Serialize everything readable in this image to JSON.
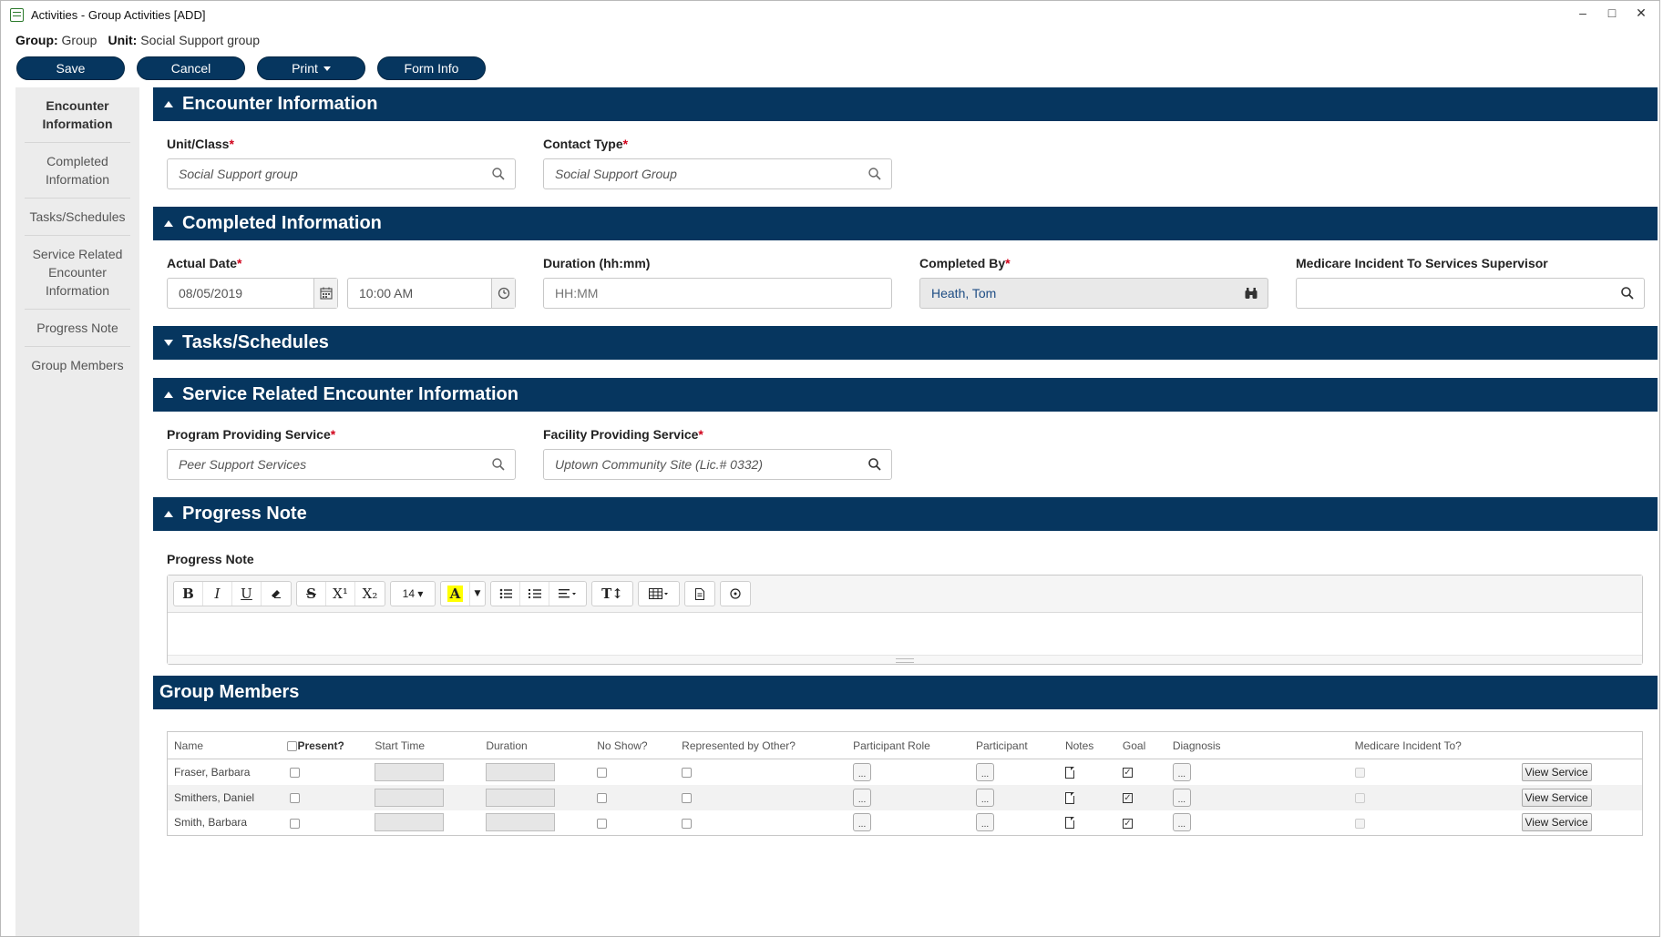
{
  "window": {
    "title": "Activities - Group Activities [ADD]",
    "minimize": "–",
    "maximize": "□",
    "close": "✕"
  },
  "context": {
    "group_label": "Group:",
    "group_value": "Group",
    "unit_label": "Unit:",
    "unit_value": "Social Support group"
  },
  "toolbar": {
    "save": "Save",
    "cancel": "Cancel",
    "print": "Print",
    "form_info": "Form Info"
  },
  "sidebar": {
    "items": [
      {
        "label": "Encounter Information"
      },
      {
        "label": "Completed Information"
      },
      {
        "label": "Tasks/Schedules"
      },
      {
        "label": "Service Related Encounter Information"
      },
      {
        "label": "Progress Note"
      },
      {
        "label": "Group Members"
      }
    ]
  },
  "encounter": {
    "title": "Encounter Information",
    "unit_label": "Unit/Class",
    "unit_value": "Social Support group",
    "contact_label": "Contact Type",
    "contact_value": "Social Support Group",
    "required_mark": "*"
  },
  "completed": {
    "title": "Completed Information",
    "date_label": "Actual Date",
    "date_value": "08/05/2019",
    "time_value": "10:00 AM",
    "duration_label": "Duration (hh:mm)",
    "duration_placeholder": "HH:MM",
    "by_label": "Completed By",
    "by_value": "Heath, Tom",
    "supervisor_label": "Medicare Incident To Services Supervisor",
    "supervisor_value": ""
  },
  "tasks": {
    "title": "Tasks/Schedules"
  },
  "service": {
    "title": "Service Related Encounter Information",
    "program_label": "Program Providing Service",
    "program_value": "Peer Support Services",
    "facility_label": "Facility Providing Service",
    "facility_value": "Uptown Community Site (Lic.# 0332)"
  },
  "progress": {
    "title": "Progress Note",
    "label": "Progress Note",
    "font_size": "14",
    "toolbar": {
      "bold": "B",
      "italic": "I",
      "underline": "U",
      "strike": "S",
      "superscript": "X¹",
      "subscript": "X₂",
      "highlight": "A",
      "style": "T↕"
    }
  },
  "group_members": {
    "title": "Group Members",
    "columns": [
      "Name",
      "Present?",
      "Start Time",
      "Duration",
      "No Show?",
      "Represented by Other?",
      "Participant Role",
      "Participant",
      "Notes",
      "Goal",
      "Diagnosis",
      "Medicare Incident To?"
    ],
    "dots": "...",
    "view_service": "View Service",
    "rows": [
      {
        "name": "Fraser, Barbara"
      },
      {
        "name": "Smithers, Daniel"
      },
      {
        "name": "Smith, Barbara"
      }
    ]
  }
}
